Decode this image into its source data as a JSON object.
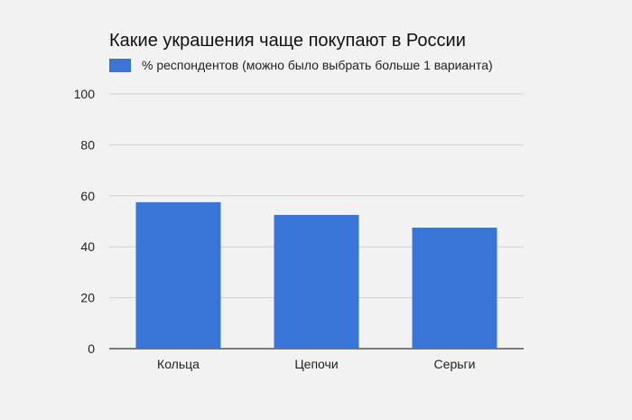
{
  "chart_data": {
    "type": "bar",
    "title": "Какие украшения чаще покупают в России",
    "categories": [
      "Кольца",
      "Цепочи",
      "Серьги"
    ],
    "series": [
      {
        "name": "% респондентов (можно было выбрать больше 1 варианта)",
        "values": [
          57.5,
          52.5,
          47.5
        ],
        "color": "#3875d7"
      }
    ],
    "xlabel": "",
    "ylabel": "",
    "ylim": [
      0,
      100
    ],
    "yticks": [
      "0",
      "20",
      "40",
      "60",
      "80",
      "100"
    ],
    "grid": true,
    "legend_position": "top-left"
  }
}
